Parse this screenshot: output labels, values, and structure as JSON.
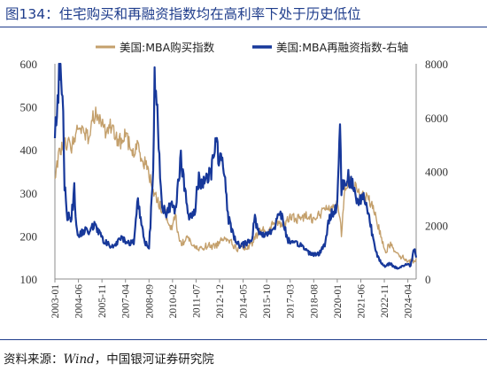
{
  "title": "图134：住宅购买和再融资指数均在高利率下处于历史低位",
  "source": {
    "prefix": "资料来源：",
    "name": "Wind",
    "suffix": "，中国银河证券研究院"
  },
  "colors": {
    "purchase": "#c4a06c",
    "refinance": "#17389a",
    "frame": "#1f3d8c",
    "axis": "#8c8c8c"
  },
  "chart_data": {
    "type": "line",
    "title": "",
    "x_type": "date",
    "x_range": [
      "2003-01",
      "2024-10"
    ],
    "x_tick_labels": [
      "2003-01",
      "2004-06",
      "2005-11",
      "2007-04",
      "2008-09",
      "2010-02",
      "2011-07",
      "2012-12",
      "2014-05",
      "2015-10",
      "2017-03",
      "2018-08",
      "2020-01",
      "2021-06",
      "2022-11",
      "2024-04"
    ],
    "y_left": {
      "range": [
        100,
        600
      ],
      "ticks": [
        100,
        200,
        300,
        400,
        500,
        600
      ]
    },
    "y_right": {
      "range": [
        0,
        8000
      ],
      "ticks": [
        0,
        2000,
        4000,
        6000,
        8000
      ]
    },
    "legend_position": "top",
    "grid": false,
    "series": [
      {
        "name": "美国:MBA购买指数",
        "axis": "left",
        "points": [
          [
            "2003-01",
            330
          ],
          [
            "2003-04",
            395
          ],
          [
            "2003-07",
            410
          ],
          [
            "2003-10",
            420
          ],
          [
            "2004-01",
            405
          ],
          [
            "2004-04",
            440
          ],
          [
            "2004-07",
            450
          ],
          [
            "2004-10",
            445
          ],
          [
            "2005-01",
            430
          ],
          [
            "2005-04",
            470
          ],
          [
            "2005-07",
            490
          ],
          [
            "2005-10",
            475
          ],
          [
            "2006-01",
            445
          ],
          [
            "2006-04",
            460
          ],
          [
            "2006-07",
            440
          ],
          [
            "2006-10",
            425
          ],
          [
            "2007-01",
            420
          ],
          [
            "2007-04",
            435
          ],
          [
            "2007-07",
            410
          ],
          [
            "2007-10",
            390
          ],
          [
            "2008-01",
            410
          ],
          [
            "2008-04",
            380
          ],
          [
            "2008-07",
            365
          ],
          [
            "2008-10",
            330
          ],
          [
            "2009-01",
            300
          ],
          [
            "2009-04",
            275
          ],
          [
            "2009-07",
            260
          ],
          [
            "2009-10",
            245
          ],
          [
            "2010-01",
            215
          ],
          [
            "2010-04",
            250
          ],
          [
            "2010-07",
            185
          ],
          [
            "2010-10",
            185
          ],
          [
            "2011-01",
            200
          ],
          [
            "2011-04",
            180
          ],
          [
            "2011-07",
            170
          ],
          [
            "2011-10",
            170
          ],
          [
            "2012-01",
            175
          ],
          [
            "2012-04",
            178
          ],
          [
            "2012-07",
            175
          ],
          [
            "2012-10",
            180
          ],
          [
            "2013-01",
            190
          ],
          [
            "2013-04",
            200
          ],
          [
            "2013-07",
            190
          ],
          [
            "2013-10",
            178
          ],
          [
            "2014-01",
            170
          ],
          [
            "2014-04",
            175
          ],
          [
            "2014-07",
            170
          ],
          [
            "2014-10",
            175
          ],
          [
            "2015-01",
            190
          ],
          [
            "2015-04",
            210
          ],
          [
            "2015-07",
            215
          ],
          [
            "2015-10",
            205
          ],
          [
            "2016-01",
            220
          ],
          [
            "2016-04",
            235
          ],
          [
            "2016-07",
            230
          ],
          [
            "2016-10",
            225
          ],
          [
            "2017-01",
            235
          ],
          [
            "2017-04",
            245
          ],
          [
            "2017-07",
            240
          ],
          [
            "2017-10",
            240
          ],
          [
            "2018-01",
            245
          ],
          [
            "2018-04",
            250
          ],
          [
            "2018-07",
            240
          ],
          [
            "2018-10",
            245
          ],
          [
            "2019-01",
            250
          ],
          [
            "2019-04",
            265
          ],
          [
            "2019-07",
            270
          ],
          [
            "2019-10",
            265
          ],
          [
            "2020-01",
            275
          ],
          [
            "2020-03",
            250
          ],
          [
            "2020-04",
            200
          ],
          [
            "2020-06",
            300
          ],
          [
            "2020-09",
            330
          ],
          [
            "2020-12",
            315
          ],
          [
            "2021-03",
            310
          ],
          [
            "2021-06",
            295
          ],
          [
            "2021-09",
            290
          ],
          [
            "2021-12",
            285
          ],
          [
            "2022-03",
            260
          ],
          [
            "2022-06",
            230
          ],
          [
            "2022-09",
            195
          ],
          [
            "2022-12",
            165
          ],
          [
            "2023-03",
            180
          ],
          [
            "2023-06",
            170
          ],
          [
            "2023-09",
            160
          ],
          [
            "2023-12",
            150
          ],
          [
            "2024-03",
            145
          ],
          [
            "2024-06",
            140
          ],
          [
            "2024-09",
            145
          ],
          [
            "2024-10",
            148
          ]
        ]
      },
      {
        "name": "美国:MBA再融资指数-右轴",
        "axis": "right",
        "points": [
          [
            "2003-01",
            5200
          ],
          [
            "2003-03",
            6800
          ],
          [
            "2003-05",
            8000
          ],
          [
            "2003-07",
            6500
          ],
          [
            "2003-08",
            3400
          ],
          [
            "2003-10",
            2400
          ],
          [
            "2004-01",
            2300
          ],
          [
            "2004-03",
            3300
          ],
          [
            "2004-05",
            1700
          ],
          [
            "2004-07",
            1600
          ],
          [
            "2004-10",
            1800
          ],
          [
            "2005-01",
            1750
          ],
          [
            "2005-04",
            2000
          ],
          [
            "2005-07",
            1900
          ],
          [
            "2005-10",
            1600
          ],
          [
            "2006-01",
            1400
          ],
          [
            "2006-04",
            1250
          ],
          [
            "2006-07",
            1200
          ],
          [
            "2006-10",
            1350
          ],
          [
            "2007-01",
            1500
          ],
          [
            "2007-04",
            1450
          ],
          [
            "2007-07",
            1300
          ],
          [
            "2007-10",
            1400
          ],
          [
            "2008-01",
            3000
          ],
          [
            "2008-03",
            2200
          ],
          [
            "2008-06",
            1400
          ],
          [
            "2008-09",
            1200
          ],
          [
            "2008-12",
            3800
          ],
          [
            "2009-01",
            7300
          ],
          [
            "2009-03",
            6200
          ],
          [
            "2009-06",
            3000
          ],
          [
            "2009-09",
            2300
          ],
          [
            "2010-01",
            2800
          ],
          [
            "2010-04",
            2600
          ],
          [
            "2010-08",
            4600
          ],
          [
            "2010-11",
            3200
          ],
          [
            "2011-02",
            2200
          ],
          [
            "2011-06",
            2500
          ],
          [
            "2011-09",
            3800
          ],
          [
            "2011-12",
            3500
          ],
          [
            "2012-03",
            3900
          ],
          [
            "2012-06",
            4000
          ],
          [
            "2012-09",
            5200
          ],
          [
            "2012-12",
            4400
          ],
          [
            "2013-03",
            4200
          ],
          [
            "2013-06",
            2300
          ],
          [
            "2013-09",
            1800
          ],
          [
            "2013-12",
            1400
          ],
          [
            "2014-03",
            1200
          ],
          [
            "2014-06",
            1300
          ],
          [
            "2014-09",
            1400
          ],
          [
            "2014-12",
            1600
          ],
          [
            "2015-01",
            2300
          ],
          [
            "2015-04",
            1800
          ],
          [
            "2015-07",
            1600
          ],
          [
            "2015-10",
            1700
          ],
          [
            "2016-01",
            1800
          ],
          [
            "2016-04",
            1900
          ],
          [
            "2016-07",
            2600
          ],
          [
            "2016-10",
            2100
          ],
          [
            "2017-01",
            1500
          ],
          [
            "2017-04",
            1300
          ],
          [
            "2017-07",
            1300
          ],
          [
            "2017-10",
            1300
          ],
          [
            "2018-01",
            1150
          ],
          [
            "2018-04",
            1000
          ],
          [
            "2018-07",
            950
          ],
          [
            "2018-10",
            900
          ],
          [
            "2019-01",
            1000
          ],
          [
            "2019-04",
            1300
          ],
          [
            "2019-07",
            2200
          ],
          [
            "2019-10",
            2500
          ],
          [
            "2020-01",
            2800
          ],
          [
            "2020-03",
            5800
          ],
          [
            "2020-04",
            3400
          ],
          [
            "2020-06",
            3500
          ],
          [
            "2020-09",
            3800
          ],
          [
            "2020-12",
            3500
          ],
          [
            "2021-03",
            2900
          ],
          [
            "2021-06",
            3000
          ],
          [
            "2021-09",
            3000
          ],
          [
            "2021-12",
            2300
          ],
          [
            "2022-03",
            1500
          ],
          [
            "2022-06",
            900
          ],
          [
            "2022-09",
            550
          ],
          [
            "2022-12",
            450
          ],
          [
            "2023-03",
            600
          ],
          [
            "2023-06",
            450
          ],
          [
            "2023-09",
            400
          ],
          [
            "2023-12",
            480
          ],
          [
            "2024-03",
            550
          ],
          [
            "2024-06",
            500
          ],
          [
            "2024-08",
            1000
          ],
          [
            "2024-09",
            1200
          ],
          [
            "2024-10",
            800
          ]
        ]
      }
    ]
  }
}
